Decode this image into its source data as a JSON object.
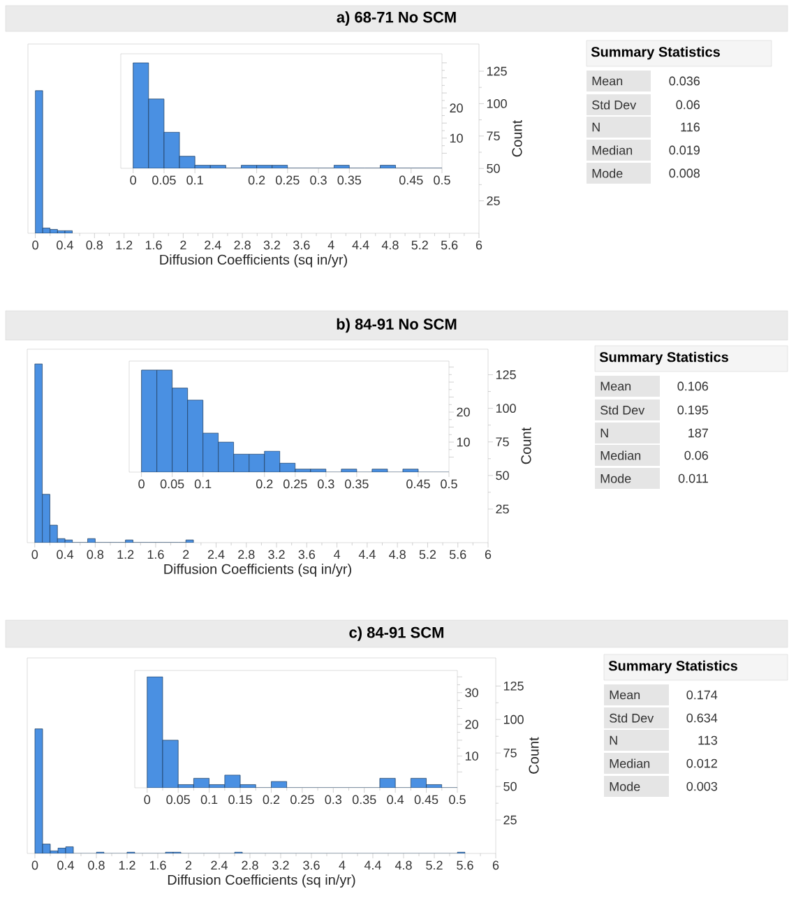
{
  "chart_data": [
    {
      "type": "histogram",
      "title": "a) 68-71 No SCM",
      "xlabel": "Diffusion Coefficients (sq in/yr)",
      "ylabel": "Count",
      "color": "#4a90e2",
      "bins": [
        0,
        0.1,
        0.2,
        0.3,
        0.4,
        0.5
      ],
      "values": [
        110,
        4,
        3,
        2,
        2
      ],
      "xlim": [
        -0.1,
        6
      ],
      "ylim": [
        0,
        146
      ],
      "xticks": [
        0,
        0.4,
        0.8,
        1.2,
        1.6,
        2,
        2.4,
        2.8,
        3.2,
        3.6,
        4,
        4.4,
        4.8,
        5.2,
        5.6,
        6
      ],
      "yticks": [
        25,
        50,
        75,
        100,
        125
      ]
    },
    {
      "type": "histogram",
      "color": "#4a90e2",
      "bins": [
        0,
        0.025,
        0.05,
        0.075,
        0.1,
        0.125,
        0.15,
        0.175,
        0.2,
        0.225,
        0.25,
        0.275,
        0.3,
        0.325,
        0.35,
        0.375,
        0.4,
        0.425,
        0.45,
        0.475,
        0.5
      ],
      "values": [
        35,
        23,
        12,
        4,
        1,
        1,
        0,
        1,
        1,
        1,
        0,
        0,
        0,
        1,
        0,
        0,
        1,
        0,
        0,
        0
      ],
      "xlim": [
        -0.02,
        0.5
      ],
      "ylim": [
        0,
        38
      ],
      "xticks": [
        0,
        0.05,
        0.1,
        0.2,
        0.25,
        0.3,
        0.35,
        0.45,
        0.5
      ],
      "yticks": [
        {
          "value": 5,
          "label": null
        },
        10,
        {
          "value": 15,
          "label": null
        },
        20,
        {
          "value": 25,
          "label": null
        },
        {
          "value": 30,
          "label": null
        },
        {
          "value": 35,
          "label": null
        }
      ]
    },
    {
      "type": "other",
      "title": "Summary Statistics",
      "categories": [
        "Mean",
        "Std Dev",
        "N",
        "Median",
        "Mode"
      ],
      "values": [
        0.036,
        0.06,
        116,
        0.019,
        0.008
      ],
      "data_labels": true
    },
    {
      "type": "histogram",
      "title": "b) 84-91 No SCM",
      "xlabel": "Diffusion Coefficients (sq in/yr)",
      "ylabel": "Count",
      "color": "#4a90e2",
      "bins": [
        0,
        0.1,
        0.2,
        0.3,
        0.4,
        0.5,
        0.6,
        0.7,
        0.8,
        0.9,
        1,
        1.1,
        1.2,
        1.3,
        1.4,
        1.5,
        1.6,
        1.7,
        1.8,
        1.9,
        2,
        2.1
      ],
      "values": [
        133,
        36,
        13,
        3,
        2,
        0,
        0,
        3,
        0,
        0,
        0,
        0,
        2,
        0,
        0,
        0,
        0,
        0,
        0,
        0,
        2
      ],
      "xlim": [
        -0.1,
        6
      ],
      "ylim": [
        0,
        144
      ],
      "xticks": [
        0,
        0.4,
        0.8,
        1.2,
        1.6,
        2,
        2.4,
        2.8,
        3.2,
        3.6,
        4,
        4.4,
        4.8,
        5.2,
        5.6,
        6
      ],
      "yticks": [
        25,
        50,
        75,
        100,
        125
      ]
    },
    {
      "type": "histogram",
      "color": "#4a90e2",
      "bins": [
        0,
        0.025,
        0.05,
        0.075,
        0.1,
        0.125,
        0.15,
        0.175,
        0.2,
        0.225,
        0.25,
        0.275,
        0.3,
        0.325,
        0.35,
        0.375,
        0.4,
        0.425,
        0.45,
        0.475,
        0.5
      ],
      "values": [
        34,
        34,
        28,
        24,
        13,
        10,
        6,
        6,
        7,
        3,
        1,
        1,
        0,
        1,
        0,
        1,
        0,
        1,
        0,
        0
      ],
      "xlim": [
        -0.02,
        0.5
      ],
      "ylim": [
        0,
        37
      ],
      "xticks": [
        0,
        0.05,
        0.1,
        0.2,
        0.25,
        0.3,
        0.35,
        0.45,
        0.5
      ],
      "yticks": [
        {
          "value": 5,
          "label": null
        },
        10,
        {
          "value": 15,
          "label": null
        },
        20,
        {
          "value": 25,
          "label": null
        },
        {
          "value": 30,
          "label": null
        },
        {
          "value": 35,
          "label": null
        }
      ]
    },
    {
      "type": "other",
      "title": "Summary Statistics",
      "categories": [
        "Mean",
        "Std Dev",
        "N",
        "Median",
        "Mode"
      ],
      "values": [
        0.106,
        0.195,
        187,
        0.06,
        0.011
      ],
      "data_labels": true
    },
    {
      "type": "histogram",
      "title": "c) 84-91 SCM",
      "xlabel": "Diffusion Coefficients (sq in/yr)",
      "ylabel": "Count",
      "color": "#4a90e2",
      "bins": [
        0,
        0.1,
        0.2,
        0.3,
        0.4,
        0.5,
        0.6,
        0.7,
        0.8,
        0.9,
        1,
        1.1,
        1.2,
        1.3,
        1.4,
        1.5,
        1.6,
        1.7,
        1.8,
        1.9,
        2,
        2.1,
        2.2,
        2.3,
        2.4,
        2.5,
        2.6,
        2.7,
        2.8,
        2.9,
        3,
        3.1,
        3.2,
        3.3,
        3.4,
        3.5,
        3.6,
        3.7,
        3.8,
        3.9,
        4,
        4.1,
        4.2,
        4.3,
        4.4,
        4.5,
        4.6,
        4.7,
        4.8,
        4.9,
        5,
        5.1,
        5.2,
        5.3,
        5.4,
        5.5,
        5.6
      ],
      "values": [
        93,
        7,
        2,
        4,
        5,
        0,
        0,
        0,
        1,
        0,
        0,
        0,
        1,
        0,
        0,
        0,
        0,
        1,
        1,
        0,
        0,
        0,
        0,
        0,
        0,
        0,
        1,
        0,
        0,
        0,
        0,
        0,
        0,
        0,
        0,
        0,
        0,
        0,
        0,
        0,
        0,
        0,
        0,
        0,
        0,
        0,
        0,
        0,
        0,
        0,
        0,
        0,
        0,
        0,
        0,
        1
      ],
      "xlim": [
        -0.1,
        6
      ],
      "ylim": [
        0,
        146
      ],
      "xticks": [
        0,
        0.4,
        0.8,
        1.2,
        1.6,
        2,
        2.4,
        2.8,
        3.2,
        3.6,
        4,
        4.4,
        4.8,
        5.2,
        5.6,
        6
      ],
      "yticks": [
        25,
        50,
        75,
        100,
        125
      ]
    },
    {
      "type": "histogram",
      "color": "#4a90e2",
      "bins": [
        0,
        0.025,
        0.05,
        0.075,
        0.1,
        0.125,
        0.15,
        0.175,
        0.2,
        0.225,
        0.25,
        0.275,
        0.3,
        0.325,
        0.35,
        0.375,
        0.4,
        0.425,
        0.45,
        0.475,
        0.5
      ],
      "values": [
        35,
        15,
        1,
        3,
        1,
        4,
        1,
        0,
        2,
        0,
        0,
        0,
        0,
        0,
        0,
        3,
        0,
        3,
        1,
        0
      ],
      "xlim": [
        -0.02,
        0.5
      ],
      "ylim": [
        0,
        37
      ],
      "xticks": [
        0,
        0.05,
        0.1,
        0.15,
        0.2,
        0.25,
        0.3,
        0.35,
        0.4,
        0.45,
        0.5
      ],
      "yticks": [
        {
          "value": 5,
          "label": null
        },
        10,
        {
          "value": 15,
          "label": null
        },
        20,
        {
          "value": 25,
          "label": null
        },
        30,
        {
          "value": 35,
          "label": null
        }
      ]
    },
    {
      "type": "other",
      "title": "Summary Statistics",
      "categories": [
        "Mean",
        "Std Dev",
        "N",
        "Median",
        "Mode"
      ],
      "values": [
        0.174,
        0.634,
        113,
        0.012,
        0.003
      ],
      "data_labels": true
    }
  ]
}
